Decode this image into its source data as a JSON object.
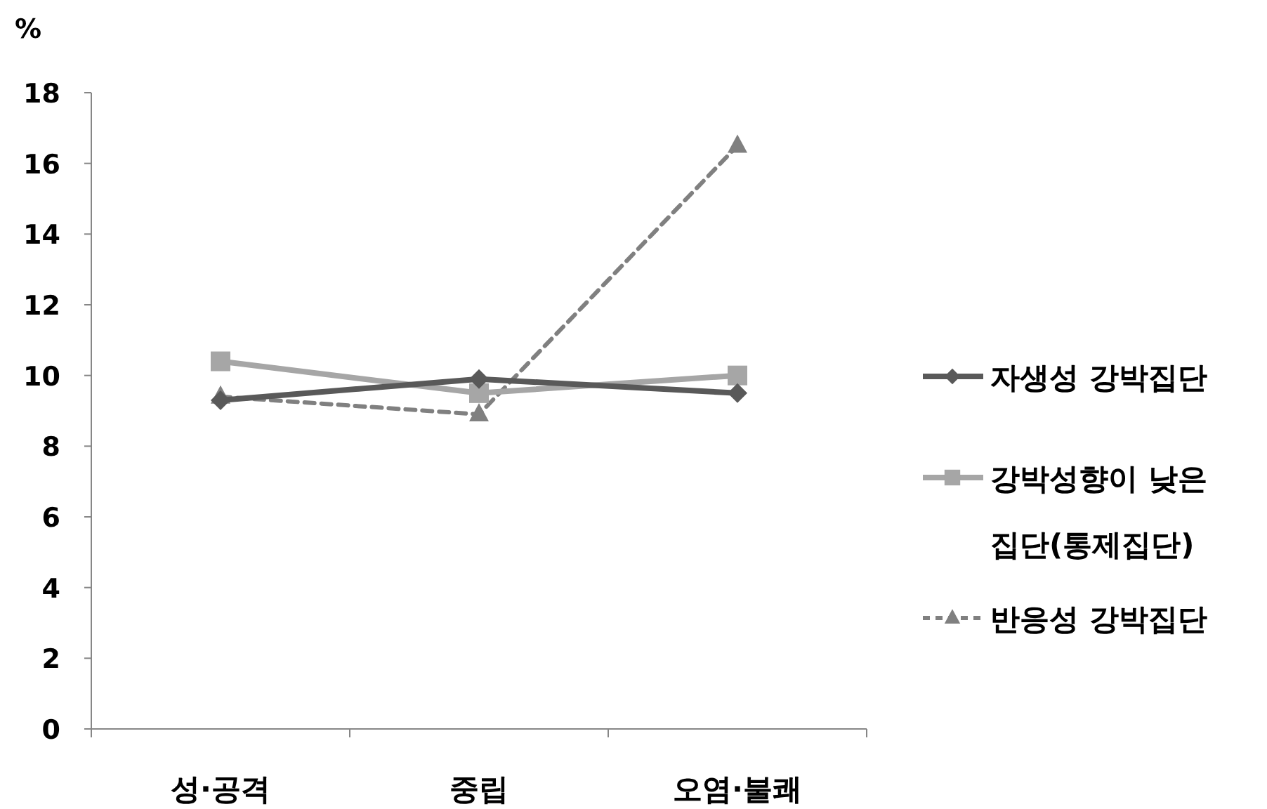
{
  "chart_data": {
    "type": "line",
    "ylabel": "%",
    "categories": [
      "성·공격",
      "중립",
      "오염·불쾌"
    ],
    "ylim": [
      0,
      18
    ],
    "yticks": [
      0,
      2,
      4,
      6,
      8,
      10,
      12,
      14,
      16,
      18
    ],
    "grid": false,
    "legend": "right",
    "series": [
      {
        "name": "자생성 강박집단",
        "color": "#595959",
        "marker": "diamond",
        "line_style": "solid",
        "values": [
          9.3,
          9.9,
          9.5
        ]
      },
      {
        "name": "강박성향이 낮은 집단(통제집단)",
        "color": "#a6a6a6",
        "marker": "square",
        "line_style": "solid",
        "values": [
          10.4,
          9.5,
          10.0
        ]
      },
      {
        "name": "반응성 강박집단",
        "color": "#808080",
        "marker": "triangle",
        "line_style": "dashed",
        "values": [
          9.4,
          8.9,
          16.5
        ]
      }
    ]
  }
}
